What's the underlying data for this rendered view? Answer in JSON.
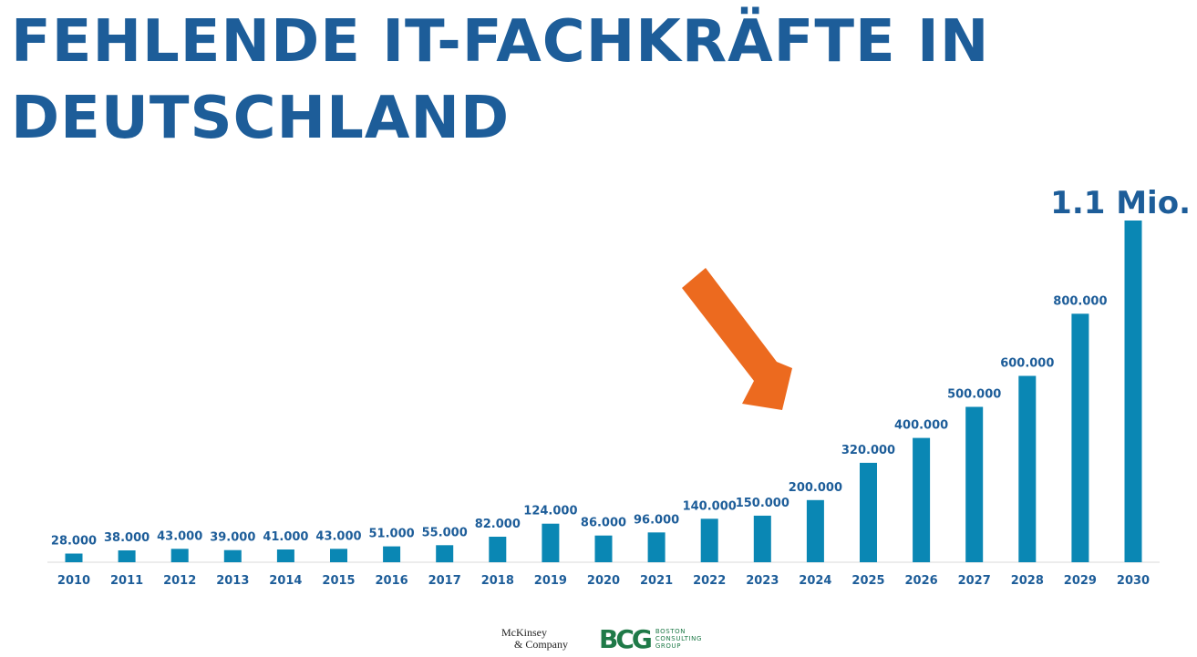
{
  "title": "FEHLENDE IT-FACHKRÄFTE IN DEUTSCHLAND",
  "logos": {
    "mckinsey_line1": "McKinsey",
    "mckinsey_line2": "& Company",
    "bcg_mark": "BCG",
    "bcg_text": "BOSTON\nCONSULTING\nGROUP"
  },
  "colors": {
    "title": "#1d5d99",
    "bars": "#0a87b4",
    "arrow": "#ec6a1f",
    "bcg": "#1f7a48"
  },
  "chart_data": {
    "type": "bar",
    "title": "FEHLENDE IT-FACHKRÄFTE IN DEUTSCHLAND",
    "xlabel": "",
    "ylabel": "",
    "ylim": [
      0,
      1100000
    ],
    "grid": false,
    "categories": [
      "2010",
      "2011",
      "2012",
      "2013",
      "2014",
      "2015",
      "2016",
      "2017",
      "2018",
      "2019",
      "2020",
      "2021",
      "2022",
      "2023",
      "2024",
      "2025",
      "2026",
      "2027",
      "2028",
      "2029",
      "2030"
    ],
    "values": [
      28000,
      38000,
      43000,
      39000,
      41000,
      43000,
      51000,
      55000,
      82000,
      124000,
      86000,
      96000,
      140000,
      150000,
      200000,
      320000,
      400000,
      500000,
      600000,
      800000,
      1100000
    ],
    "data_labels": [
      "28.000",
      "38.000",
      "43.000",
      "39.000",
      "41.000",
      "43.000",
      "51.000",
      "55.000",
      "82.000",
      "124.000",
      "86.000",
      "96.000",
      "140.000",
      "150.000",
      "200.000",
      "320.000",
      "400.000",
      "500.000",
      "600.000",
      "800.000",
      "1.1 Mio."
    ],
    "highlight": {
      "category": "2024",
      "marker": "arrow"
    }
  }
}
